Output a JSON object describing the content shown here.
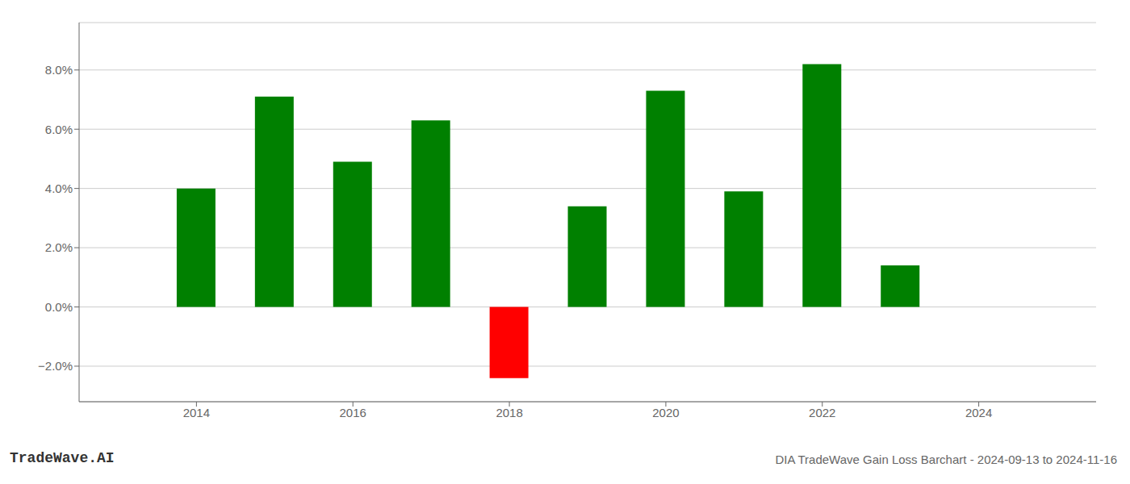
{
  "chart_data": {
    "type": "bar",
    "title": "DIA TradeWave Gain Loss Barchart - 2024-09-13 to 2024-11-16",
    "annotations": [
      "TradeWave.AI"
    ],
    "x": [
      2014,
      2015,
      2016,
      2017,
      2018,
      2019,
      2020,
      2021,
      2022,
      2023
    ],
    "values": [
      0.04,
      0.071,
      0.049,
      0.063,
      -0.024,
      0.034,
      0.073,
      0.039,
      0.082,
      0.014
    ],
    "colors": [
      "#008000",
      "#008000",
      "#008000",
      "#008000",
      "#ff0000",
      "#008000",
      "#008000",
      "#008000",
      "#008000",
      "#008000"
    ],
    "xlim": [
      2012.5,
      2025.5
    ],
    "xticks": [
      2014,
      2016,
      2018,
      2020,
      2022,
      2024
    ],
    "ylim": [
      -0.032,
      0.096
    ],
    "yticks": [
      {
        "value": -0.02,
        "label": "−2.0%"
      },
      {
        "value": 0.0,
        "label": "0.0%"
      },
      {
        "value": 0.02,
        "label": "2.0%"
      },
      {
        "value": 0.04,
        "label": "4.0%"
      },
      {
        "value": 0.06,
        "label": "6.0%"
      },
      {
        "value": 0.08,
        "label": "8.0%"
      }
    ],
    "grid": true
  }
}
